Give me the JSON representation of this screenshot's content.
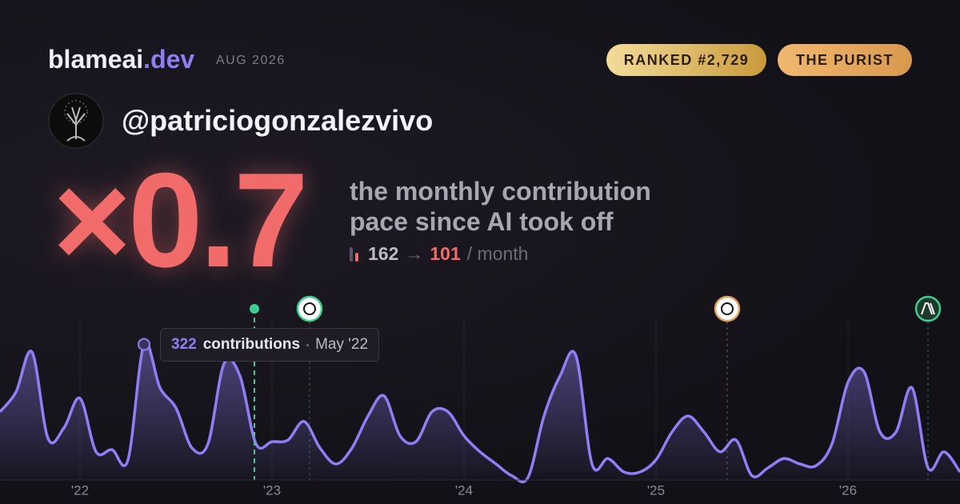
{
  "brand": {
    "name": "blameai",
    "tld": ".dev",
    "date": "AUG 2026"
  },
  "badges": [
    "RANKED #2,729",
    "THE PURIST"
  ],
  "user": {
    "handle": "@patriciogonzalezvivo"
  },
  "headline": {
    "multiplier": "×0.7",
    "description": "the monthly contribution pace since AI took off",
    "before": "162",
    "arrow": "→",
    "after": "101",
    "unit": "/ month"
  },
  "tooltip": {
    "label": "contributions",
    "date": "May '22"
  },
  "chart_data": {
    "type": "area",
    "categories": [
      null,
      null,
      null,
      null,
      null,
      "'22",
      null,
      null,
      null,
      null,
      null,
      null,
      null,
      null,
      null,
      null,
      null,
      "'23",
      null,
      null,
      null,
      null,
      null,
      null,
      null,
      null,
      null,
      null,
      null,
      "'24",
      null,
      null,
      null,
      null,
      null,
      null,
      null,
      null,
      null,
      null,
      null,
      "'25",
      null,
      null,
      null,
      null,
      null,
      null,
      null,
      null,
      null,
      null,
      null,
      "'26",
      null,
      null,
      null,
      null,
      null,
      null,
      null
    ],
    "series": [
      {
        "name": "contributions",
        "color": "#8f7ff5",
        "values": [
          162,
          209,
          304,
          99,
          124,
          194,
          67,
          72,
          48,
          322,
          219,
          171,
          76,
          86,
          276,
          247,
          86,
          91,
          95,
          139,
          76,
          38,
          76,
          152,
          200,
          105,
          91,
          162,
          162,
          105,
          67,
          38,
          10,
          6,
          152,
          247,
          295,
          38,
          51,
          19,
          19,
          48,
          114,
          152,
          114,
          67,
          95,
          10,
          29,
          51,
          38,
          34,
          86,
          232,
          257,
          114,
          114,
          219,
          29,
          67,
          19
        ]
      }
    ],
    "ylim": [
      0,
      380
    ],
    "grid": true
  }
}
